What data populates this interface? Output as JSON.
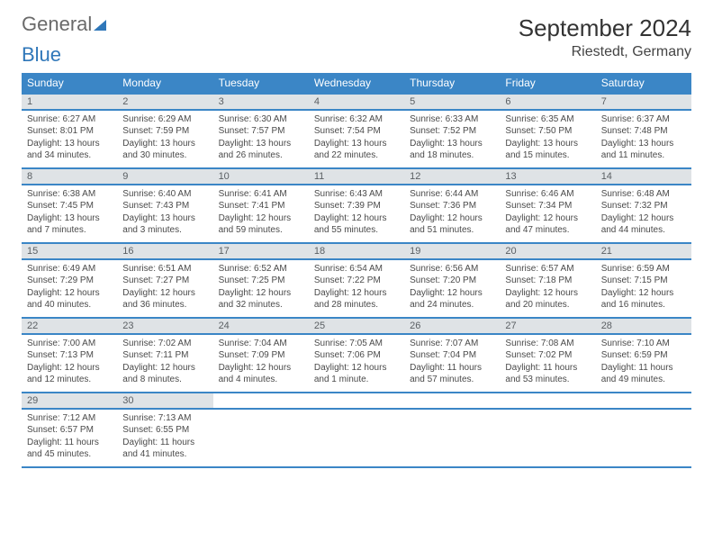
{
  "logo": {
    "part1": "General",
    "part2": "Blue"
  },
  "title": "September 2024",
  "location": "Riestedt, Germany",
  "colors": {
    "header_bg": "#3b86c6",
    "header_text": "#ffffff",
    "daynum_bg": "#dfe3e6",
    "daynum_text": "#5a5f63",
    "body_text": "#4a4a4a",
    "rule": "#3b86c6",
    "logo_gray": "#6a6a6a",
    "logo_blue": "#2f77b9"
  },
  "weekdays": [
    "Sunday",
    "Monday",
    "Tuesday",
    "Wednesday",
    "Thursday",
    "Friday",
    "Saturday"
  ],
  "weeks": [
    [
      {
        "n": "1",
        "sunrise": "Sunrise: 6:27 AM",
        "sunset": "Sunset: 8:01 PM",
        "day": "Daylight: 13 hours and 34 minutes."
      },
      {
        "n": "2",
        "sunrise": "Sunrise: 6:29 AM",
        "sunset": "Sunset: 7:59 PM",
        "day": "Daylight: 13 hours and 30 minutes."
      },
      {
        "n": "3",
        "sunrise": "Sunrise: 6:30 AM",
        "sunset": "Sunset: 7:57 PM",
        "day": "Daylight: 13 hours and 26 minutes."
      },
      {
        "n": "4",
        "sunrise": "Sunrise: 6:32 AM",
        "sunset": "Sunset: 7:54 PM",
        "day": "Daylight: 13 hours and 22 minutes."
      },
      {
        "n": "5",
        "sunrise": "Sunrise: 6:33 AM",
        "sunset": "Sunset: 7:52 PM",
        "day": "Daylight: 13 hours and 18 minutes."
      },
      {
        "n": "6",
        "sunrise": "Sunrise: 6:35 AM",
        "sunset": "Sunset: 7:50 PM",
        "day": "Daylight: 13 hours and 15 minutes."
      },
      {
        "n": "7",
        "sunrise": "Sunrise: 6:37 AM",
        "sunset": "Sunset: 7:48 PM",
        "day": "Daylight: 13 hours and 11 minutes."
      }
    ],
    [
      {
        "n": "8",
        "sunrise": "Sunrise: 6:38 AM",
        "sunset": "Sunset: 7:45 PM",
        "day": "Daylight: 13 hours and 7 minutes."
      },
      {
        "n": "9",
        "sunrise": "Sunrise: 6:40 AM",
        "sunset": "Sunset: 7:43 PM",
        "day": "Daylight: 13 hours and 3 minutes."
      },
      {
        "n": "10",
        "sunrise": "Sunrise: 6:41 AM",
        "sunset": "Sunset: 7:41 PM",
        "day": "Daylight: 12 hours and 59 minutes."
      },
      {
        "n": "11",
        "sunrise": "Sunrise: 6:43 AM",
        "sunset": "Sunset: 7:39 PM",
        "day": "Daylight: 12 hours and 55 minutes."
      },
      {
        "n": "12",
        "sunrise": "Sunrise: 6:44 AM",
        "sunset": "Sunset: 7:36 PM",
        "day": "Daylight: 12 hours and 51 minutes."
      },
      {
        "n": "13",
        "sunrise": "Sunrise: 6:46 AM",
        "sunset": "Sunset: 7:34 PM",
        "day": "Daylight: 12 hours and 47 minutes."
      },
      {
        "n": "14",
        "sunrise": "Sunrise: 6:48 AM",
        "sunset": "Sunset: 7:32 PM",
        "day": "Daylight: 12 hours and 44 minutes."
      }
    ],
    [
      {
        "n": "15",
        "sunrise": "Sunrise: 6:49 AM",
        "sunset": "Sunset: 7:29 PM",
        "day": "Daylight: 12 hours and 40 minutes."
      },
      {
        "n": "16",
        "sunrise": "Sunrise: 6:51 AM",
        "sunset": "Sunset: 7:27 PM",
        "day": "Daylight: 12 hours and 36 minutes."
      },
      {
        "n": "17",
        "sunrise": "Sunrise: 6:52 AM",
        "sunset": "Sunset: 7:25 PM",
        "day": "Daylight: 12 hours and 32 minutes."
      },
      {
        "n": "18",
        "sunrise": "Sunrise: 6:54 AM",
        "sunset": "Sunset: 7:22 PM",
        "day": "Daylight: 12 hours and 28 minutes."
      },
      {
        "n": "19",
        "sunrise": "Sunrise: 6:56 AM",
        "sunset": "Sunset: 7:20 PM",
        "day": "Daylight: 12 hours and 24 minutes."
      },
      {
        "n": "20",
        "sunrise": "Sunrise: 6:57 AM",
        "sunset": "Sunset: 7:18 PM",
        "day": "Daylight: 12 hours and 20 minutes."
      },
      {
        "n": "21",
        "sunrise": "Sunrise: 6:59 AM",
        "sunset": "Sunset: 7:15 PM",
        "day": "Daylight: 12 hours and 16 minutes."
      }
    ],
    [
      {
        "n": "22",
        "sunrise": "Sunrise: 7:00 AM",
        "sunset": "Sunset: 7:13 PM",
        "day": "Daylight: 12 hours and 12 minutes."
      },
      {
        "n": "23",
        "sunrise": "Sunrise: 7:02 AM",
        "sunset": "Sunset: 7:11 PM",
        "day": "Daylight: 12 hours and 8 minutes."
      },
      {
        "n": "24",
        "sunrise": "Sunrise: 7:04 AM",
        "sunset": "Sunset: 7:09 PM",
        "day": "Daylight: 12 hours and 4 minutes."
      },
      {
        "n": "25",
        "sunrise": "Sunrise: 7:05 AM",
        "sunset": "Sunset: 7:06 PM",
        "day": "Daylight: 12 hours and 1 minute."
      },
      {
        "n": "26",
        "sunrise": "Sunrise: 7:07 AM",
        "sunset": "Sunset: 7:04 PM",
        "day": "Daylight: 11 hours and 57 minutes."
      },
      {
        "n": "27",
        "sunrise": "Sunrise: 7:08 AM",
        "sunset": "Sunset: 7:02 PM",
        "day": "Daylight: 11 hours and 53 minutes."
      },
      {
        "n": "28",
        "sunrise": "Sunrise: 7:10 AM",
        "sunset": "Sunset: 6:59 PM",
        "day": "Daylight: 11 hours and 49 minutes."
      }
    ],
    [
      {
        "n": "29",
        "sunrise": "Sunrise: 7:12 AM",
        "sunset": "Sunset: 6:57 PM",
        "day": "Daylight: 11 hours and 45 minutes."
      },
      {
        "n": "30",
        "sunrise": "Sunrise: 7:13 AM",
        "sunset": "Sunset: 6:55 PM",
        "day": "Daylight: 11 hours and 41 minutes."
      },
      null,
      null,
      null,
      null,
      null
    ]
  ]
}
